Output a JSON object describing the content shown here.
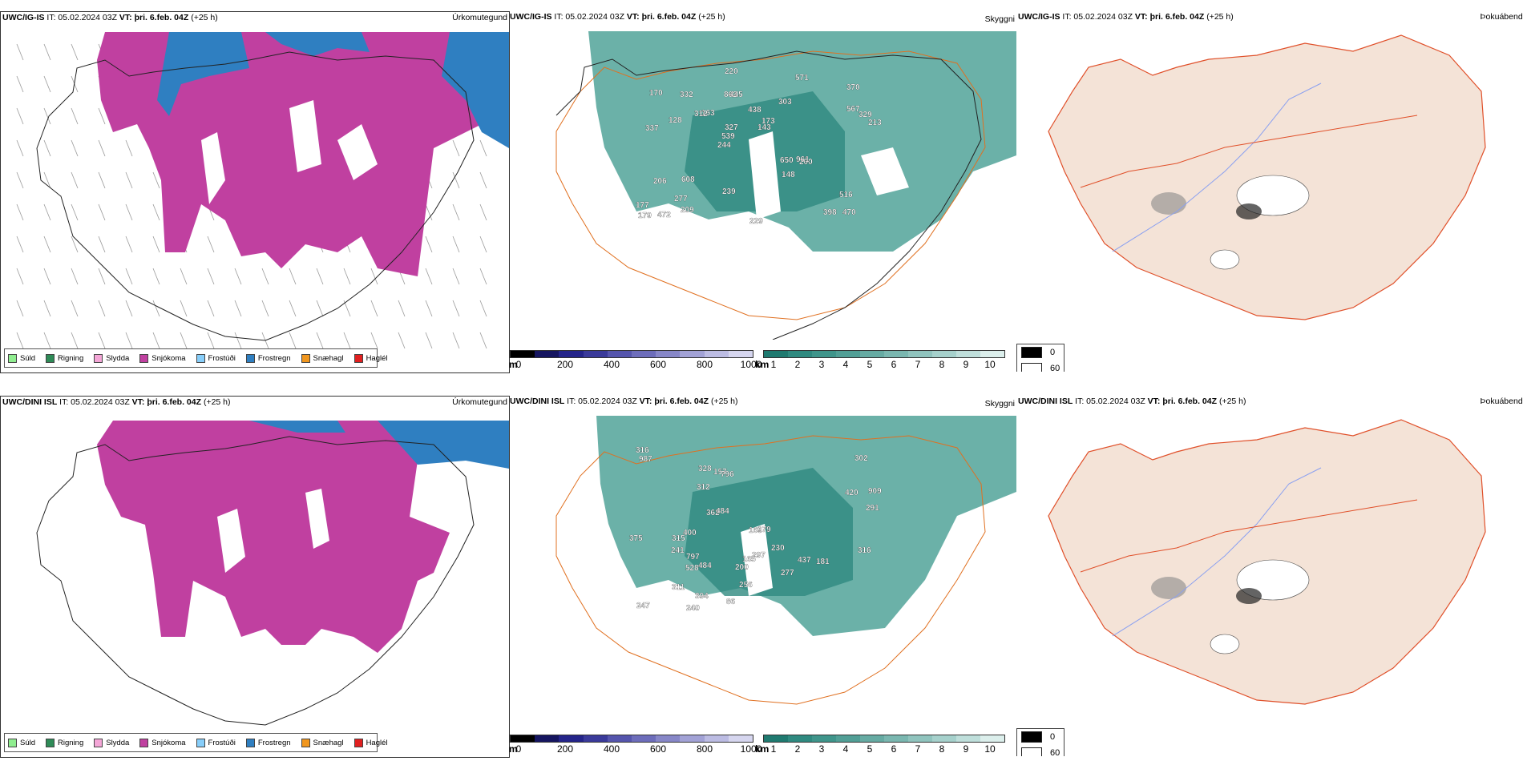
{
  "rows": [
    {
      "model": "UWC/IG-IS",
      "init": "IT: 05.02.2024 03Z",
      "valid": "VT: þri. 6.feb. 04Z",
      "lead": "(+25 h)"
    },
    {
      "model": "UWC/DINI ISL",
      "init": "IT: 05.02.2024 03Z",
      "valid": "VT: þri. 6.feb. 04Z",
      "lead": "(+25 h)"
    }
  ],
  "titles": {
    "precip": "Úrkomutegund",
    "cloud": "Skyggni",
    "fog": "Þokuábendi"
  },
  "precip_legend": [
    {
      "label": "Súld",
      "color": "#90ee90"
    },
    {
      "label": "Rigning",
      "color": "#2e8b57"
    },
    {
      "label": "Slydda",
      "color": "#f4a6d7"
    },
    {
      "label": "Snjókoma",
      "color": "#c040a0"
    },
    {
      "label": "Frostúði",
      "color": "#87cefa"
    },
    {
      "label": "Frostregn",
      "color": "#2f7fc1"
    },
    {
      "label": "Snæhagl",
      "color": "#f0961e"
    },
    {
      "label": "Haglél",
      "color": "#e02020"
    }
  ],
  "cloud_scale": {
    "unit": "m",
    "ticks": [
      "0",
      "200",
      "400",
      "600",
      "800",
      "1000"
    ],
    "colors": [
      "#000000",
      "#151560",
      "#24248a",
      "#3a3a9a",
      "#5555ad",
      "#6d6dbb",
      "#8787c8",
      "#a2a2d6",
      "#bcbce3",
      "#d6d6ef"
    ]
  },
  "vis_scale": {
    "unit": "km",
    "ticks": [
      "1",
      "2",
      "3",
      "4",
      "5",
      "6",
      "7",
      "8",
      "9",
      "10"
    ],
    "colors": [
      "#1f7a70",
      "#2f8a80",
      "#3f958b",
      "#519f96",
      "#66aba3",
      "#7ab7b0",
      "#90c4be",
      "#a6d1cc",
      "#bfdfdb",
      "#dcefec",
      "#ffffff"
    ]
  },
  "fog_legend": [
    {
      "label": "0",
      "color": "#000000"
    },
    {
      "label": "60",
      "color": "#ffffff"
    }
  ],
  "cloud_labels_top": [
    "470",
    "337",
    "370",
    "244",
    "303",
    "472",
    "862",
    "438",
    "206",
    "163",
    "177",
    "277",
    "445",
    "173",
    "200",
    "170",
    "220",
    "213",
    "650",
    "567",
    "539",
    "239",
    "327",
    "332",
    "571",
    "608",
    "398",
    "516",
    "961",
    "229",
    "312",
    "128",
    "148",
    "209",
    "329",
    "143",
    "179"
  ],
  "cloud_labels_bottom": [
    "987",
    "316",
    "375",
    "302",
    "909",
    "277",
    "796",
    "484",
    "247",
    "437",
    "528",
    "179",
    "240",
    "241",
    "165",
    "362",
    "200",
    "311",
    "312",
    "484",
    "291",
    "256",
    "394",
    "400",
    "315",
    "297",
    "797",
    "181",
    "86",
    "157",
    "230",
    "328",
    "420",
    "316",
    "169"
  ]
}
